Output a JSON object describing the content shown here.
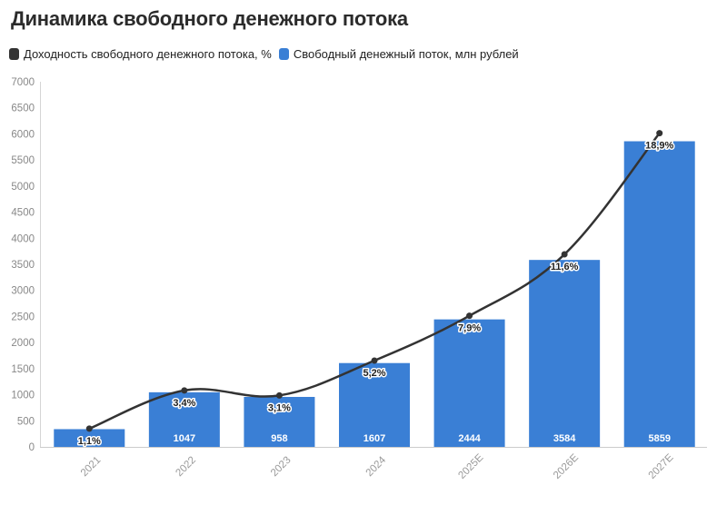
{
  "title": "Динамика свободного денежного потока",
  "legend": [
    {
      "label": "Доходность свободного денежного потока, %",
      "color": "#333333"
    },
    {
      "label": "Свободный денежный поток, млн рублей",
      "color": "#3a7fd5"
    }
  ],
  "chart_data": {
    "type": "bar",
    "title": "Динамика свободного денежного потока",
    "categories": [
      "2021",
      "2022",
      "2023",
      "2024",
      "2025E",
      "2026E",
      "2027E"
    ],
    "y_ticks": [
      "0",
      "500",
      "1000",
      "1500",
      "2000",
      "2500",
      "3000",
      "3500",
      "4000",
      "4500",
      "5000",
      "5500",
      "6000",
      "6500",
      "7000"
    ],
    "ylim": [
      0,
      7000
    ],
    "grid": false,
    "legend_position": "top-left",
    "series": [
      {
        "name": "Свободный денежный поток, млн рублей",
        "type": "bar",
        "color": "#3a7fd5",
        "values": [
          340,
          1047,
          958,
          1607,
          2444,
          3584,
          5859
        ],
        "labels": [
          "",
          "1047",
          "958",
          "1607",
          "2444",
          "3584",
          "5859"
        ]
      },
      {
        "name": "Доходность свободного денежного потока, %",
        "type": "line",
        "color": "#333333",
        "values": [
          1.1,
          3.4,
          3.1,
          5.2,
          7.9,
          11.6,
          18.9
        ],
        "labels": [
          "1,1%",
          "3,4%",
          "3,1%",
          "5,2%",
          "7,9%",
          "11,6%",
          "18,9%"
        ]
      }
    ]
  }
}
